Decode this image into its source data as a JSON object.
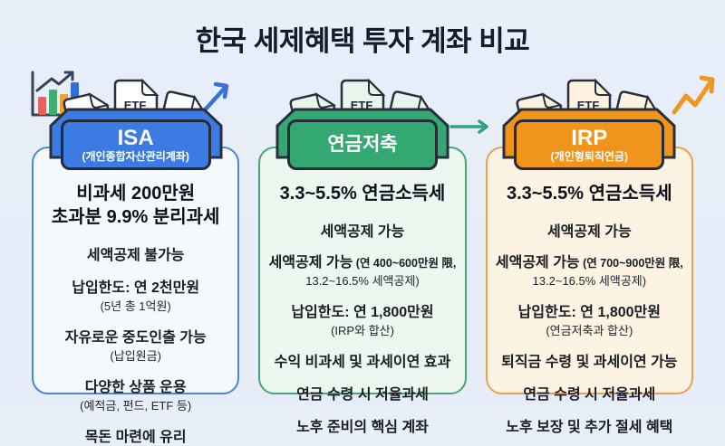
{
  "title": "한국 세제혜택 투자 계좌 비교",
  "background_color": "#e9eff9",
  "folder": {
    "doc_label": "ETF"
  },
  "decorations": {
    "chart_icon": "bar-chart-growth-icon",
    "chart_axis_color": "#39415a",
    "chart_bar_colors": [
      "#e8615f",
      "#3fae6f",
      "#f0a239",
      "#2f6fd8"
    ],
    "isa_trend_arrow_color": "#3a72d4",
    "pension_to_irp_arrow_color": "#2fa47c",
    "irp_trend_arrow_color": "#ef9722"
  },
  "columns": [
    {
      "id": "isa",
      "badge_title": "ISA",
      "badge_subtitle": "(개인종합자산관리계좌)",
      "colors": {
        "accent": "#3c7ce2",
        "card_bg": "#f5f9fe",
        "card_border": "#4a86d8",
        "doc_fill": "#ffffff",
        "bar": "#3c72d8"
      },
      "lines": [
        {
          "style": "headline",
          "text": "비과세 200만원"
        },
        {
          "style": "headline",
          "text": "초과분 9.9% 분리과세"
        },
        {
          "style": "main",
          "text": "세액공제 불가능"
        },
        {
          "style": "main",
          "text": "납입한도: 연 2천만원"
        },
        {
          "style": "sub",
          "text": "(5년 총 1억원)"
        },
        {
          "style": "main",
          "text": "자유로운 중도인출 가능"
        },
        {
          "style": "sub",
          "text": "(납입원금)"
        },
        {
          "style": "main",
          "text": "다양한 상품 운용"
        },
        {
          "style": "sub",
          "text": "(예적금, 펀드, ETF 등)"
        },
        {
          "style": "main",
          "text": "목돈 마련에 유리"
        }
      ]
    },
    {
      "id": "pension-savings",
      "badge_title": "연금저축",
      "badge_subtitle": "",
      "colors": {
        "accent": "#34a873",
        "card_bg": "#edf7ef",
        "card_border": "#44a876",
        "doc_fill": "#e9f5ec",
        "bar": "#2f8f5e"
      },
      "lines": [
        {
          "style": "headline",
          "text": "3.3~5.5% 연금소득세"
        },
        {
          "style": "main",
          "text": "세액공제 가능"
        },
        {
          "style": "mixed",
          "text": "세액공제 가능",
          "suffix": "(연 400~600만원 限,"
        },
        {
          "style": "sub",
          "text": "13.2~16.5% 세액공제)"
        },
        {
          "style": "main",
          "text": "납입한도: 연 1,800만원"
        },
        {
          "style": "sub",
          "text": "(IRP와 합산)"
        },
        {
          "style": "main",
          "text": "수익 비과세 및 과세이연 효과"
        },
        {
          "style": "main",
          "text": "연금 수령 시 저율과세"
        },
        {
          "style": "main",
          "text": "노후 준비의 핵심 계좌"
        }
      ]
    },
    {
      "id": "irp",
      "badge_title": "IRP",
      "badge_subtitle": "(개인형퇴직연금)",
      "colors": {
        "accent": "#f0941c",
        "card_bg": "#fdf3e2",
        "card_border": "#e9a14e",
        "doc_fill": "#fdf2e0",
        "bar": "#e08818"
      },
      "lines": [
        {
          "style": "headline",
          "text": "3.3~5.5% 연금소득세"
        },
        {
          "style": "main",
          "text": "세액공제 가능"
        },
        {
          "style": "mixed",
          "text": "세액공제 가능",
          "suffix": "(연 700~900만원 限,"
        },
        {
          "style": "sub",
          "text": "13.2~16.5% 세액공제)"
        },
        {
          "style": "main",
          "text": "납입한도: 연 1,800만원"
        },
        {
          "style": "sub",
          "text": "(연금저축과 합산)"
        },
        {
          "style": "main",
          "text": "퇴직금 수령 및 과세이연 가능"
        },
        {
          "style": "main",
          "text": "연금 수령 시 저율과세"
        },
        {
          "style": "main",
          "text": "노후 보장 및 추가 절세 혜택"
        }
      ]
    }
  ]
}
